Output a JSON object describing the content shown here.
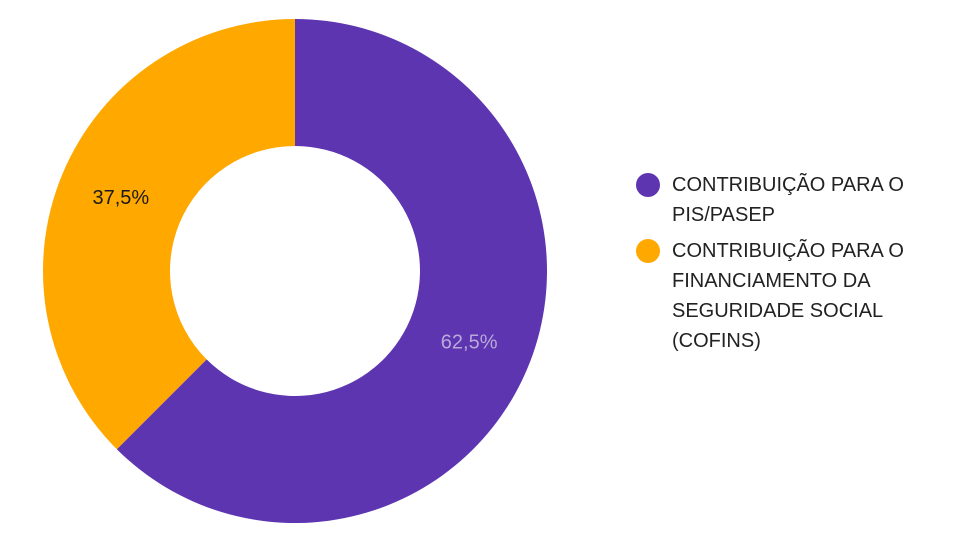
{
  "chart_data": {
    "type": "pie",
    "donut": true,
    "title": "",
    "series": [
      {
        "name": "CONTRIBUIÇÃO PARA O PIS/PASEP",
        "value": 62.5,
        "label": "62,5%",
        "color": "#5e35b1",
        "label_color": "#b8a9d9"
      },
      {
        "name": "CONTRIBUIÇÃO PARA O FINANCIAMENTO DA SEGURIDADE SOCIAL (COFINS)",
        "value": 37.5,
        "label": "37,5%",
        "color": "#ffa800",
        "label_color": "#1a1a1a"
      }
    ],
    "legend_position": "right"
  }
}
